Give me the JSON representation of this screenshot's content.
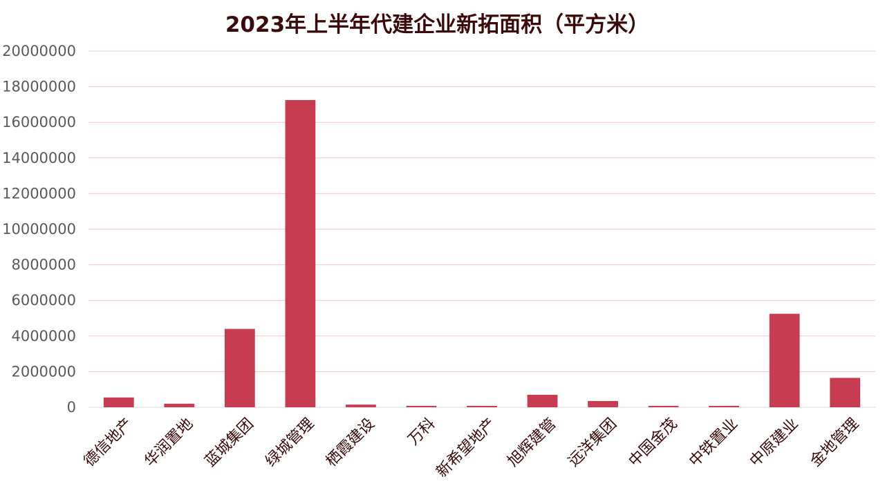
{
  "chart_data": {
    "type": "bar",
    "title": "2023年上半年代建企业新拓面积（平方米）",
    "xlabel": "",
    "ylabel": "",
    "ylim": [
      0,
      20000000
    ],
    "yticks": [
      "0",
      "2000000",
      "4000000",
      "6000000",
      "8000000",
      "10000000",
      "12000000",
      "14000000",
      "16000000",
      "18000000",
      "20000000"
    ],
    "grid": true,
    "legend": "none",
    "categories": [
      "德信地产",
      "华润置地",
      "蓝城集团",
      "绿城管理",
      "栖霞建设",
      "万科",
      "新希望地产",
      "旭辉建管",
      "远洋集团",
      "中国金茂",
      "中铁置业",
      "中原建业",
      "金地管理"
    ],
    "values": [
      550000,
      200000,
      4400000,
      17250000,
      150000,
      80000,
      80000,
      700000,
      350000,
      80000,
      80000,
      5250000,
      1650000
    ]
  },
  "colors": {
    "bar": "#c83c52",
    "grid": "#f2c6c6",
    "axis": "#d9d9d9",
    "text": "#3b0a0a",
    "tick_text": "#595959"
  }
}
